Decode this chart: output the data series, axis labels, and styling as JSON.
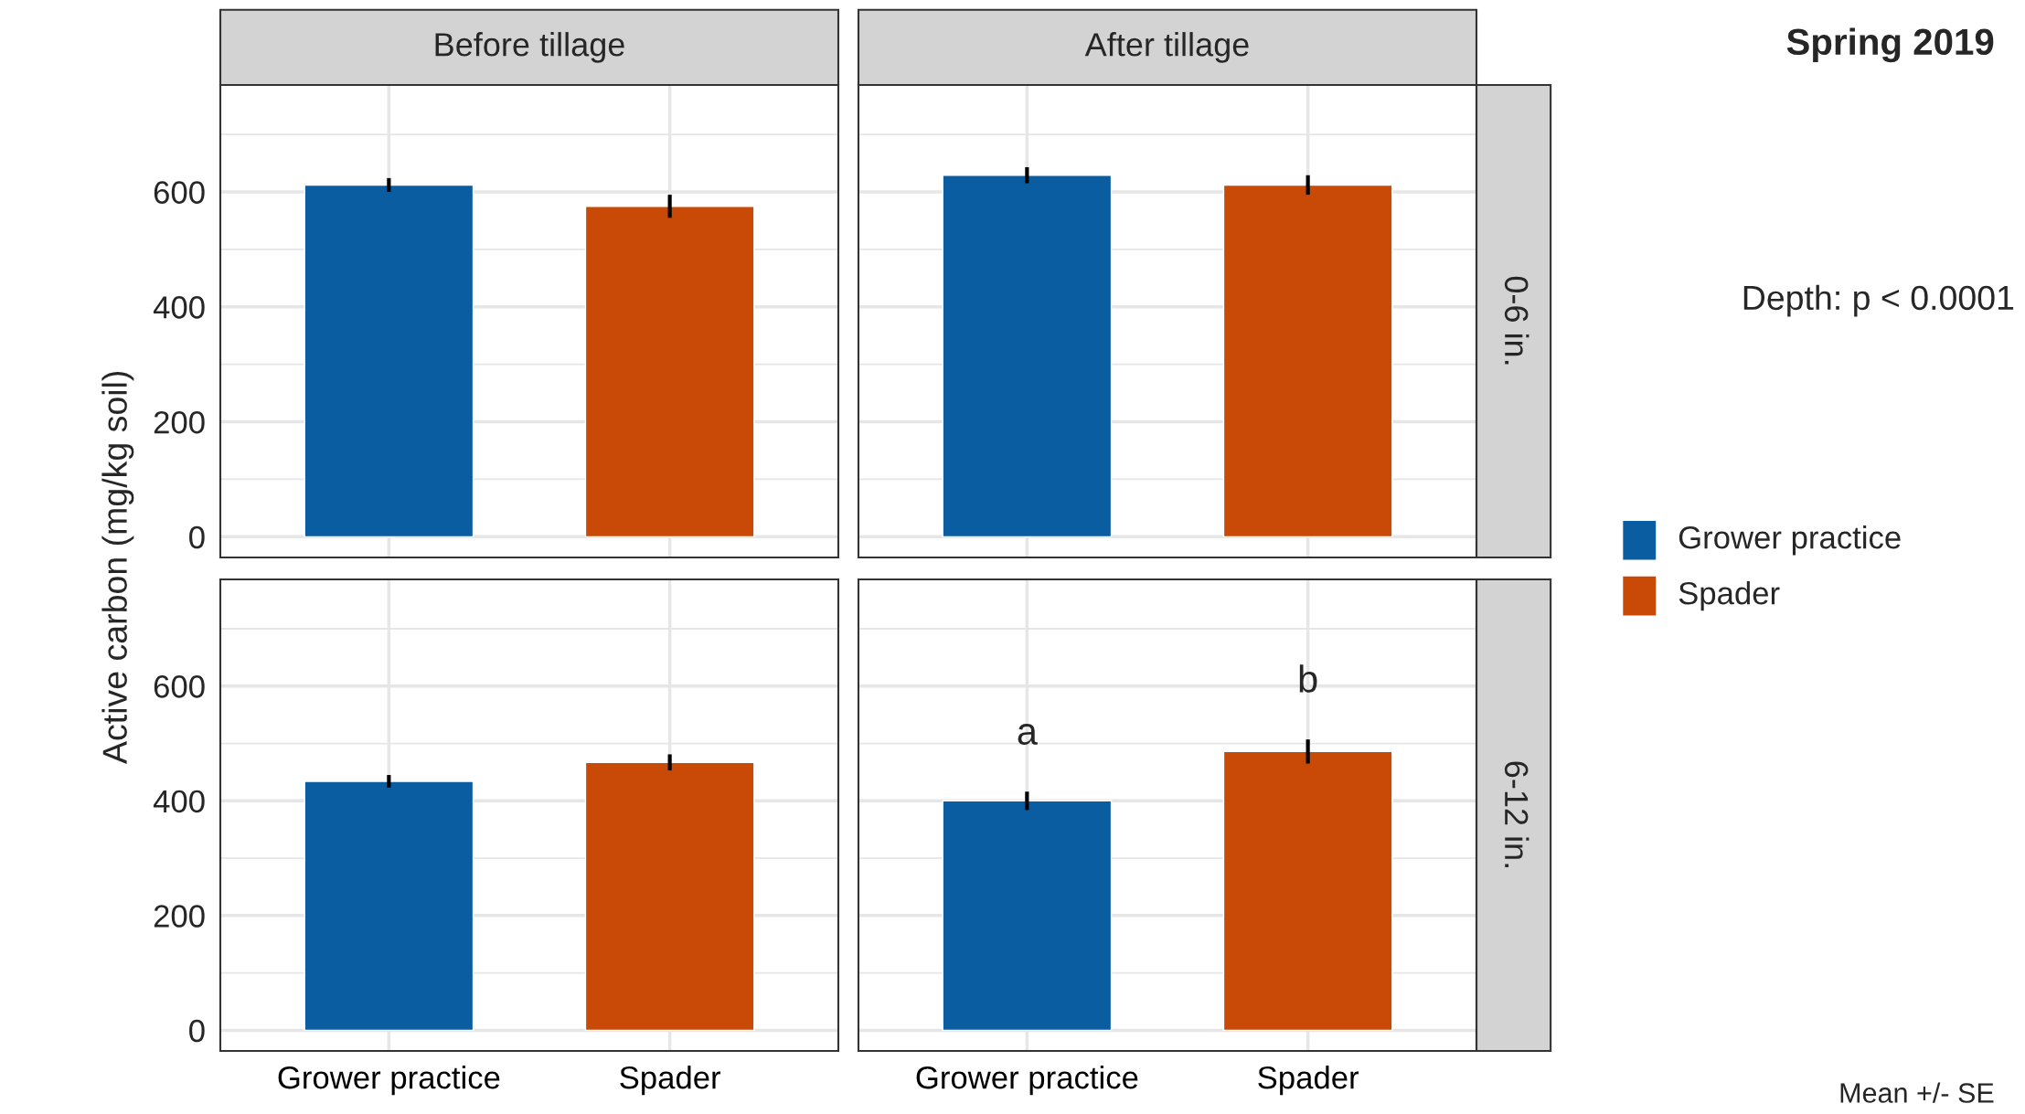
{
  "chart_data": [
    {
      "type": "bar",
      "title": "Before tillage",
      "ylabel": "Active carbon (mg/kg soil)",
      "categories": [
        null,
        null
      ],
      "values": [
        612,
        575
      ],
      "errors": [
        12,
        20
      ],
      "colors": [
        "#0b5da1",
        "#c84a06"
      ],
      "ylim": [
        -36,
        786
      ],
      "yticks": [
        0,
        200,
        400,
        600
      ],
      "grid": true,
      "tick_labels": "y"
    },
    {
      "type": "bar",
      "title": "After tillage",
      "annotations": [
        "0-6 in."
      ],
      "categories": [
        "Grower practice",
        "Spader"
      ],
      "values": [
        629,
        612
      ],
      "errors": [
        14,
        17
      ],
      "colors": [
        "#0b5da1",
        "#c84a06"
      ],
      "ylim": [
        -36,
        786
      ],
      "yticks": [
        0,
        200,
        400,
        600
      ],
      "grid": true,
      "tick_labels": false
    },
    {
      "type": "bar",
      "categories": [
        "Grower practice",
        "Spader"
      ],
      "values": [
        434,
        467
      ],
      "errors": [
        11,
        14
      ],
      "colors": [
        "#0b5da1",
        "#c84a06"
      ],
      "ylim": [
        -36,
        786
      ],
      "yticks": [
        0,
        200,
        400,
        600
      ],
      "grid": true
    },
    {
      "type": "bar",
      "annotations": [
        "6-12 in.",
        "a",
        "b"
      ],
      "categories": [
        "Grower practice",
        "Spader"
      ],
      "values": [
        400,
        486
      ],
      "errors": [
        16,
        21
      ],
      "colors": [
        "#0b5da1",
        "#c84a06"
      ],
      "ylim": [
        -36,
        786
      ],
      "yticks": [
        0,
        200,
        400,
        600
      ],
      "grid": true,
      "tick_labels": "x"
    },
    {
      "type": "other",
      "title": "Spring 2019",
      "annotations": [
        "Depth: p < 0.0001",
        "Mean +/- SE"
      ]
    }
  ]
}
